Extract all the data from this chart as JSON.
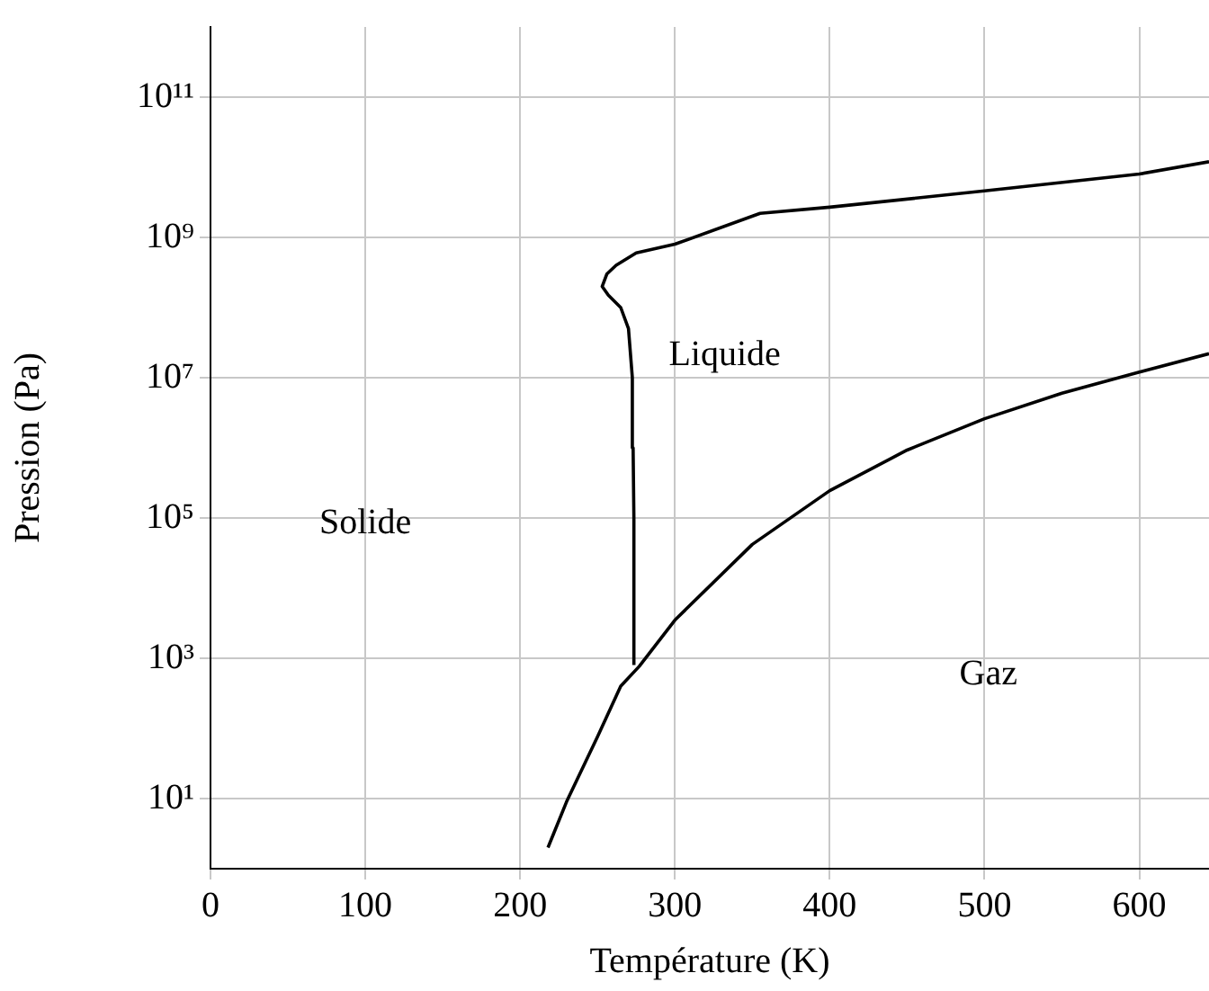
{
  "chart_data": {
    "type": "line",
    "xlabel": "Température (K)",
    "ylabel": "Pression (Pa)",
    "xlim": [
      0,
      645
    ],
    "xticks": [
      0,
      100,
      200,
      300,
      400,
      500,
      600
    ],
    "ylim": [
      1,
      1000000000000.0
    ],
    "yticks": [
      {
        "value": 10,
        "label": "10¹"
      },
      {
        "value": 1000,
        "label": "10³"
      },
      {
        "value": 100000,
        "label": "10⁵"
      },
      {
        "value": 10000000,
        "label": "10⁷"
      },
      {
        "value": 1000000000,
        "label": "10⁹"
      },
      {
        "value": 100000000000,
        "label": "10¹¹"
      }
    ],
    "log": "y",
    "grid": true,
    "marker": "none",
    "line_style": "solid",
    "series": [
      {
        "color": "#000000",
        "x": [
          218,
          230,
          250,
          265,
          277,
          300,
          350,
          400,
          450,
          500,
          550,
          600,
          645
        ],
        "values": [
          2,
          9,
          76,
          400,
          770,
          3500,
          42000,
          245000,
          930000,
          2600000,
          6000000,
          12000000,
          22000000
        ]
      },
      {
        "color": "#000000",
        "x": [
          273.5,
          273.5,
          273,
          272.5,
          270,
          265,
          257,
          253,
          256,
          262,
          275,
          300,
          355,
          400,
          500,
          600,
          645
        ],
        "values": [
          800,
          100000,
          1000000,
          10000000,
          50000000,
          100000000,
          150000000,
          200000000,
          300000000,
          400000000,
          600000000,
          800000000,
          2200000000,
          2700000000,
          4600000000,
          8000000000,
          12000000000
        ]
      }
    ],
    "annotations": [
      "Solide",
      "Liquide",
      "Gaz"
    ]
  }
}
